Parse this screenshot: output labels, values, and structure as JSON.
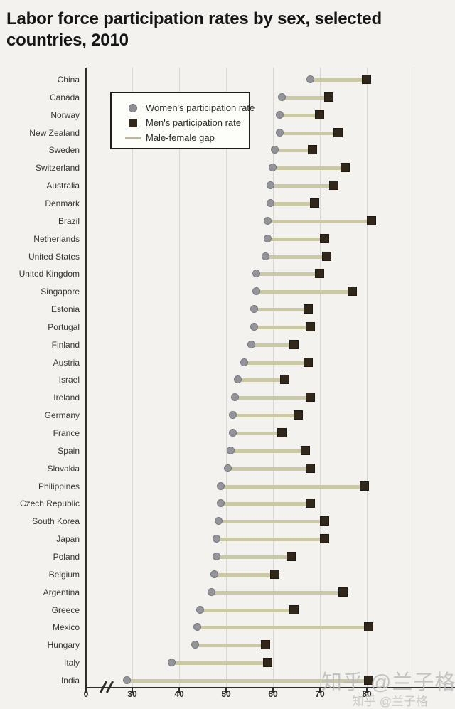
{
  "title": "Labor force participation rates by sex, selected countries, 2010",
  "title_lines": [
    "Labor force participation rates by sex, selected",
    "countries, 2010"
  ],
  "legend": {
    "items": [
      {
        "label": "Women's participation rate",
        "marker": "circle",
        "color": "#8f8f96"
      },
      {
        "label": "Men's participation rate",
        "marker": "square",
        "color": "#33281c"
      },
      {
        "label": "Male-female gap",
        "marker": "line",
        "color": "#cbc8a4"
      }
    ]
  },
  "watermark": "知乎 @兰子格",
  "colors": {
    "women_dot": "#94949b",
    "men_square": "#31271b",
    "gap_line": "#cbc8a4",
    "gridline": "#d9d7d2",
    "axis": "#2e2d2b"
  },
  "chart_data": {
    "type": "scatter",
    "variant": "dumbbell",
    "title": "Labor force participation rates by sex, selected countries, 2010",
    "categories": [
      "China",
      "Canada",
      "Norway",
      "New Zealand",
      "Sweden",
      "Switzerland",
      "Australia",
      "Denmark",
      "Brazil",
      "Netherlands",
      "United States",
      "United Kingdom",
      "Singapore",
      "Estonia",
      "Portugal",
      "Finland",
      "Austria",
      "Israel",
      "Ireland",
      "Germany",
      "France",
      "Spain",
      "Slovakia",
      "Philippines",
      "Czech Republic",
      "South Korea",
      "Japan",
      "Poland",
      "Belgium",
      "Argentina",
      "Greece",
      "Mexico",
      "Hungary",
      "Italy",
      "India"
    ],
    "series": [
      {
        "name": "Women's participation rate",
        "values": [
          68,
          62,
          61.5,
          61.5,
          60.5,
          60,
          59.5,
          59.5,
          59,
          59,
          58.5,
          56.5,
          56.5,
          56,
          56,
          55.5,
          54,
          52.5,
          52,
          51.5,
          51.5,
          51,
          50.5,
          49,
          49,
          48.5,
          48,
          48,
          47.5,
          47,
          44.5,
          44,
          43.5,
          38.5,
          29
        ]
      },
      {
        "name": "Men's participation rate",
        "values": [
          80,
          72,
          70,
          74,
          68.5,
          75.5,
          73,
          69,
          81,
          71,
          71.5,
          70,
          77,
          67.5,
          68,
          64.5,
          67.5,
          62.5,
          68,
          65.5,
          62,
          67,
          68,
          79.5,
          68,
          71,
          71,
          64,
          60.5,
          75,
          64.5,
          80.5,
          58.5,
          59,
          80.5
        ]
      }
    ],
    "xlabel": "",
    "ylabel": "",
    "x_ticks": [
      0,
      30,
      40,
      50,
      60,
      70,
      80
    ],
    "x_gridlines": [
      30,
      40,
      50,
      60,
      70,
      80,
      90
    ],
    "xlim": [
      0,
      95
    ],
    "axis_break": "between 0 and 30",
    "grid": true,
    "legend_position": "top-left"
  }
}
